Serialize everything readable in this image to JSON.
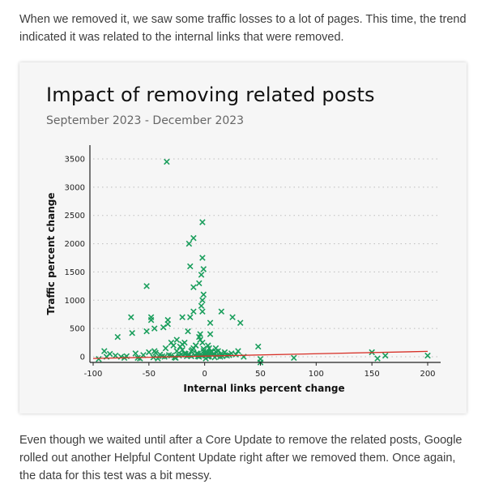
{
  "article": {
    "para_top": "When we removed it, we saw some traffic losses to a lot of pages. This time, the trend indicated it was related to the internal links that were removed.",
    "para_bottom": "Even though we waited until after a Core Update to remove the related posts, Google rolled out another Helpful Content Update right after we removed them. Once again, the data for this test was a bit messy."
  },
  "colors": {
    "points": "#1a9e5c",
    "trend": "#d73027",
    "card": "#f6f6f6"
  },
  "chart_data": {
    "type": "scatter",
    "title": "Impact of removing related posts",
    "subtitle": "September 2023 - December 2023",
    "xlabel": "Internal links percent change",
    "ylabel": "Traffic percent change",
    "xlim": [
      -100,
      200
    ],
    "ylim": [
      -100,
      3600
    ],
    "xticks": [
      -100,
      -50,
      0,
      50,
      100,
      150,
      200
    ],
    "yticks": [
      0,
      500,
      1000,
      1500,
      2000,
      2500,
      3000,
      3500
    ],
    "grid": "horizontal-dotted",
    "marker": "x",
    "trendline": {
      "x": [
        -100,
        200
      ],
      "y": [
        -30,
        95
      ]
    },
    "series": [
      {
        "x": [
          -34,
          -2,
          -14,
          -10,
          -13,
          -2,
          -1,
          -3,
          -52,
          -2,
          -10,
          -5,
          -1,
          -3,
          -13,
          -33,
          -48,
          -48,
          -66,
          -4,
          -2,
          -10,
          -20,
          -33,
          -37,
          -45,
          -52,
          -65,
          -78,
          -25,
          -18,
          -8,
          -20,
          5,
          15,
          25,
          32,
          -15,
          -5,
          5,
          48,
          80,
          150,
          155,
          162,
          200,
          50,
          50,
          -90,
          -85,
          -80,
          -75,
          -70,
          -62,
          -55,
          -50,
          -45,
          -40,
          -35,
          -30,
          -28,
          -25,
          -22,
          -20,
          -18,
          -15,
          -12,
          -10,
          -8,
          -6,
          -4,
          -2,
          -1,
          1,
          2,
          3,
          4,
          6,
          8,
          10,
          12,
          15,
          18,
          20,
          22,
          28,
          30,
          35,
          -60,
          -42,
          -38,
          -32,
          -27,
          -23,
          -17,
          -12,
          -7,
          -3,
          0,
          3,
          7,
          11,
          16,
          24,
          -95,
          -88,
          -72,
          -58,
          -46,
          -36,
          -26,
          -16,
          -9,
          -5,
          -2,
          1,
          4,
          9,
          14,
          -30,
          -21,
          -14,
          -6,
          2,
          6,
          -44,
          -11,
          -1,
          10
        ],
        "y": [
          3450,
          2380,
          2000,
          2100,
          1600,
          1750,
          1550,
          1450,
          1250,
          1000,
          1230,
          1300,
          1100,
          900,
          700,
          650,
          650,
          700,
          700,
          400,
          800,
          800,
          700,
          580,
          520,
          500,
          450,
          420,
          350,
          300,
          250,
          200,
          220,
          600,
          800,
          700,
          600,
          450,
          350,
          400,
          180,
          -20,
          80,
          -30,
          20,
          20,
          -40,
          -100,
          100,
          50,
          20,
          0,
          10,
          60,
          30,
          80,
          100,
          40,
          150,
          250,
          200,
          100,
          180,
          120,
          60,
          30,
          100,
          150,
          200,
          50,
          300,
          250,
          100,
          50,
          80,
          200,
          150,
          100,
          50,
          150,
          100,
          60,
          80,
          20,
          30,
          40,
          100,
          0,
          -20,
          -30,
          10,
          30,
          -10,
          20,
          50,
          10,
          60,
          20,
          40,
          0,
          30,
          20,
          10,
          60,
          -40,
          0,
          -20,
          -30,
          -10,
          0,
          -20,
          10,
          30,
          0,
          20,
          -30,
          10,
          -10,
          0,
          20,
          40,
          30,
          10,
          50,
          80,
          70,
          120,
          140,
          90
        ]
      }
    ]
  }
}
